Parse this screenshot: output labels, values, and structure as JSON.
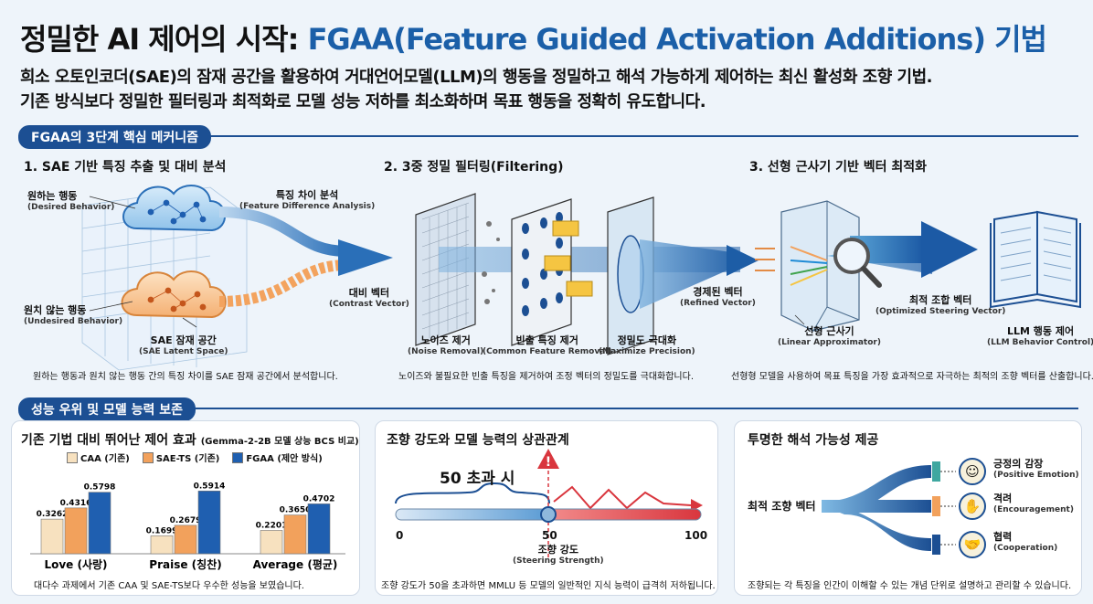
{
  "header": {
    "title_main": "정밀한 AI 제어의 시작: ",
    "title_accent": "FGAA(Feature Guided Activation Additions) 기법",
    "subtitle_1": "희소 오토인코더(SAE)의 잠재 공간을 활용하여 거대언어모델(LLM)의 행동을 정밀하고 해석 가능하게 제어하는 최신 활성화 조향 기법.",
    "subtitle_2": "기존 방식보다 정밀한 필터링과 최적화로 모델 성능 저하를 최소화하며 목표 행동을 정확히 유도합니다."
  },
  "section1": {
    "pill": "FGAA의 3단계 핵심 메커니즘",
    "step1": {
      "title": "1. SAE 기반 특징 추출 및 대비 분석",
      "desired": "원하는 행동",
      "desired_en": "(Desired Behavior)",
      "undesired": "원치 않는 행동",
      "undesired_en": "(Undesired Behavior)",
      "feature_diff": "특징 차이 분석",
      "feature_diff_en": "(Feature Difference Analysis)",
      "latent": "SAE 잠재 공간",
      "latent_en": "(SAE Latent Space)",
      "contrast": "대비 벡터",
      "contrast_en": "(Contrast Vector)",
      "caption": "원하는 행동과 원치 않는 행동 간의 특징 차이를 SAE 잠재 공간에서 분석합니다."
    },
    "step2": {
      "title": "2. 3중 정밀 필터링(Filtering)",
      "noise": "노이즈 제거",
      "noise_en": "(Noise Removal)",
      "common": "빈출 특징 제거",
      "common_en": "(Common Feature Removal)",
      "precision": "정밀도 극대화",
      "precision_en": "(Maximize Precision)",
      "caption": "노이즈와 불필요한 빈출 특징을 제거하여 조정 벡터의 정밀도를 극대화합니다."
    },
    "step3": {
      "title": "3. 선형 근사기 기반 벡터 최적화",
      "refined": "경제된 벡터",
      "refined_en": "(Refined Vector)",
      "linear": "선형 근사기",
      "linear_en": "(Linear Approximator)",
      "optimized": "최적 조합 벡터",
      "optimized_en": "(Optimized Steering Vector)",
      "llm": "LLM 행동 제어",
      "llm_en": "(LLM Behavior Control)",
      "caption": "선형형 모델을 사용하여 목표 특징을 가장 효과적으로 자극하는 최적의 조향 벡터를 산출합니다."
    }
  },
  "section2": {
    "pill": "성능 우위 및 모델 능력 보존",
    "card1": {
      "title": "기존 기법 대비 뛰어난 제어 효과",
      "title_small": "(Gemma-2-2B 모델 상능 BCS 비교)",
      "caption": "대다수 과제에서 기존 CAA 및 SAE-TS보다 우수한 성능을 보였습니다."
    },
    "card2": {
      "title": "조향 강도와 모델 능력의 상관관계",
      "over50": "50 초과 시",
      "axis_label": "조향 강도",
      "axis_label_en": "(Steering Strength)",
      "tick0": "0",
      "tick50": "50",
      "tick100": "100",
      "caption": "조향 강도가 50을 초과하면 MMLU 등 모델의 일반적인 지식 능력이 급격히 저하됩니다."
    },
    "card3": {
      "title": "투명한 해석 가능성 제공",
      "source": "최적 조향 벡터",
      "out1": "긍정의 감장",
      "out1_en": "(Positive Emotion)",
      "out2": "격려",
      "out2_en": "(Encouragement)",
      "out3": "협력",
      "out3_en": "(Cooperation)",
      "caption": "조향되는 각 특징을 인간이 이해할 수 있는 개념 단위로 설명하고 관리할 수 있습니다."
    }
  },
  "chart_data": {
    "type": "bar",
    "categories": [
      "Love (사랑)",
      "Praise (칭찬)",
      "Average (평균)"
    ],
    "series": [
      {
        "name": "CAA (기존)",
        "values": [
          0.3262,
          0.1699,
          0.2201
        ],
        "color": "#f7e1bf"
      },
      {
        "name": "SAE-TS (기존)",
        "values": [
          0.4316,
          0.2679,
          0.365
        ],
        "color": "#f2a15c"
      },
      {
        "name": "FGAA (제안 방식)",
        "values": [
          0.5798,
          0.5914,
          0.4702
        ],
        "color": "#1f5fb0"
      }
    ],
    "ylim": [
      0,
      0.62
    ]
  },
  "colors": {
    "brand": "#1c4f93",
    "accent": "#1b5fa8",
    "danger": "#d9363e"
  }
}
